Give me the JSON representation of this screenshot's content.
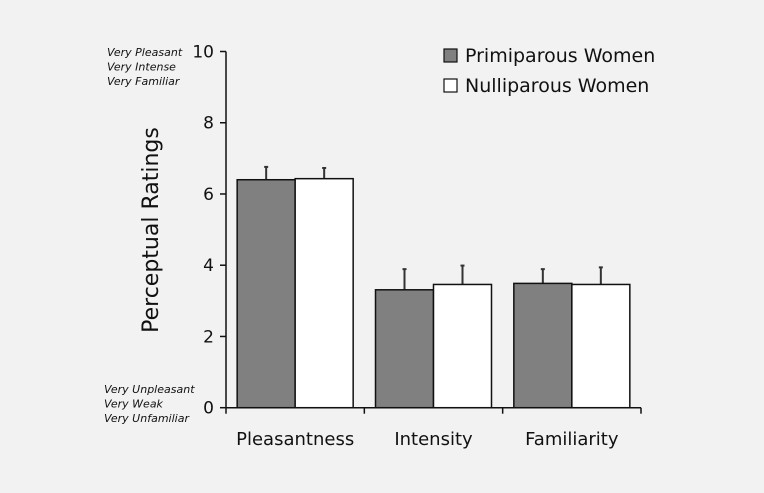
{
  "chart_data": {
    "type": "bar",
    "title": "",
    "xlabel": "",
    "ylabel": "Perceptual Ratings",
    "ylim": [
      0,
      10
    ],
    "yticks": [
      0,
      2,
      4,
      6,
      8,
      10
    ],
    "categories": [
      "Pleasantness",
      "Intensity",
      "Familiarity"
    ],
    "series": [
      {
        "name": "Primiparous Women",
        "color": "#808080",
        "values": [
          6.4,
          3.31,
          3.49
        ],
        "error_upper": [
          6.76,
          3.89,
          3.89
        ]
      },
      {
        "name": "Nulliparous Women",
        "color": "#ffffff",
        "values": [
          6.43,
          3.46,
          3.46
        ],
        "error_upper": [
          6.73,
          3.99,
          3.94
        ]
      }
    ],
    "legend_position": "top-right",
    "grid": false,
    "annotations": {
      "top": [
        "Very Pleasant",
        "Very Intense",
        "Very Familiar"
      ],
      "bottom": [
        "Very Unpleasant",
        "Very Weak",
        "Very Unfamiliar"
      ]
    }
  }
}
